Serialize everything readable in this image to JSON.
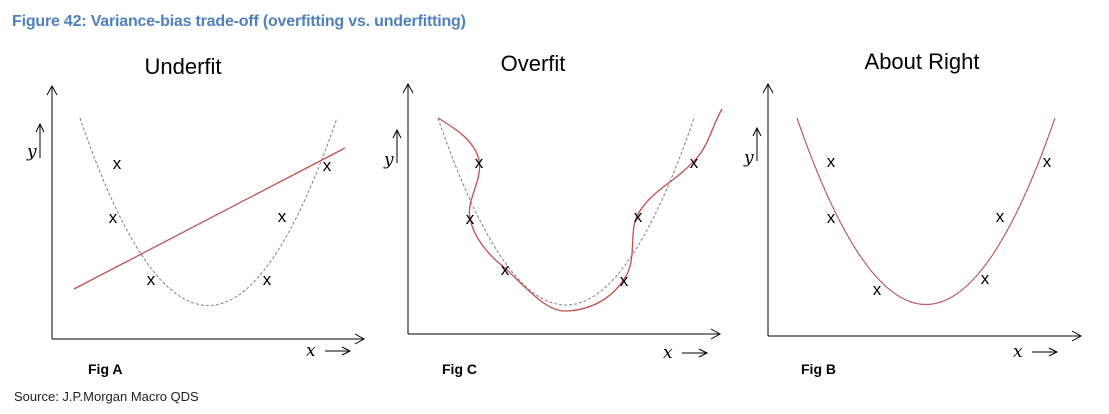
{
  "figure_title": "Figure 42: Variance-bias trade-off (overfitting vs. underfitting)",
  "source": "Source: J.P.Morgan Macro QDS",
  "point_marker": "x",
  "y_axis_label": "y",
  "x_axis_label": "x",
  "colors": {
    "title": "#4f81bd",
    "reference_curve": "#808080",
    "fit": "#c0504d",
    "axis": "#000000"
  },
  "panels": [
    {
      "title": "Underfit",
      "fig_label": "Fig A",
      "fit": "linear"
    },
    {
      "title": "Overfit",
      "fig_label": "Fig C",
      "fit": "wiggly-interpolation"
    },
    {
      "title": "About Right",
      "fig_label": "Fig B",
      "fit": "quadratic"
    }
  ]
}
